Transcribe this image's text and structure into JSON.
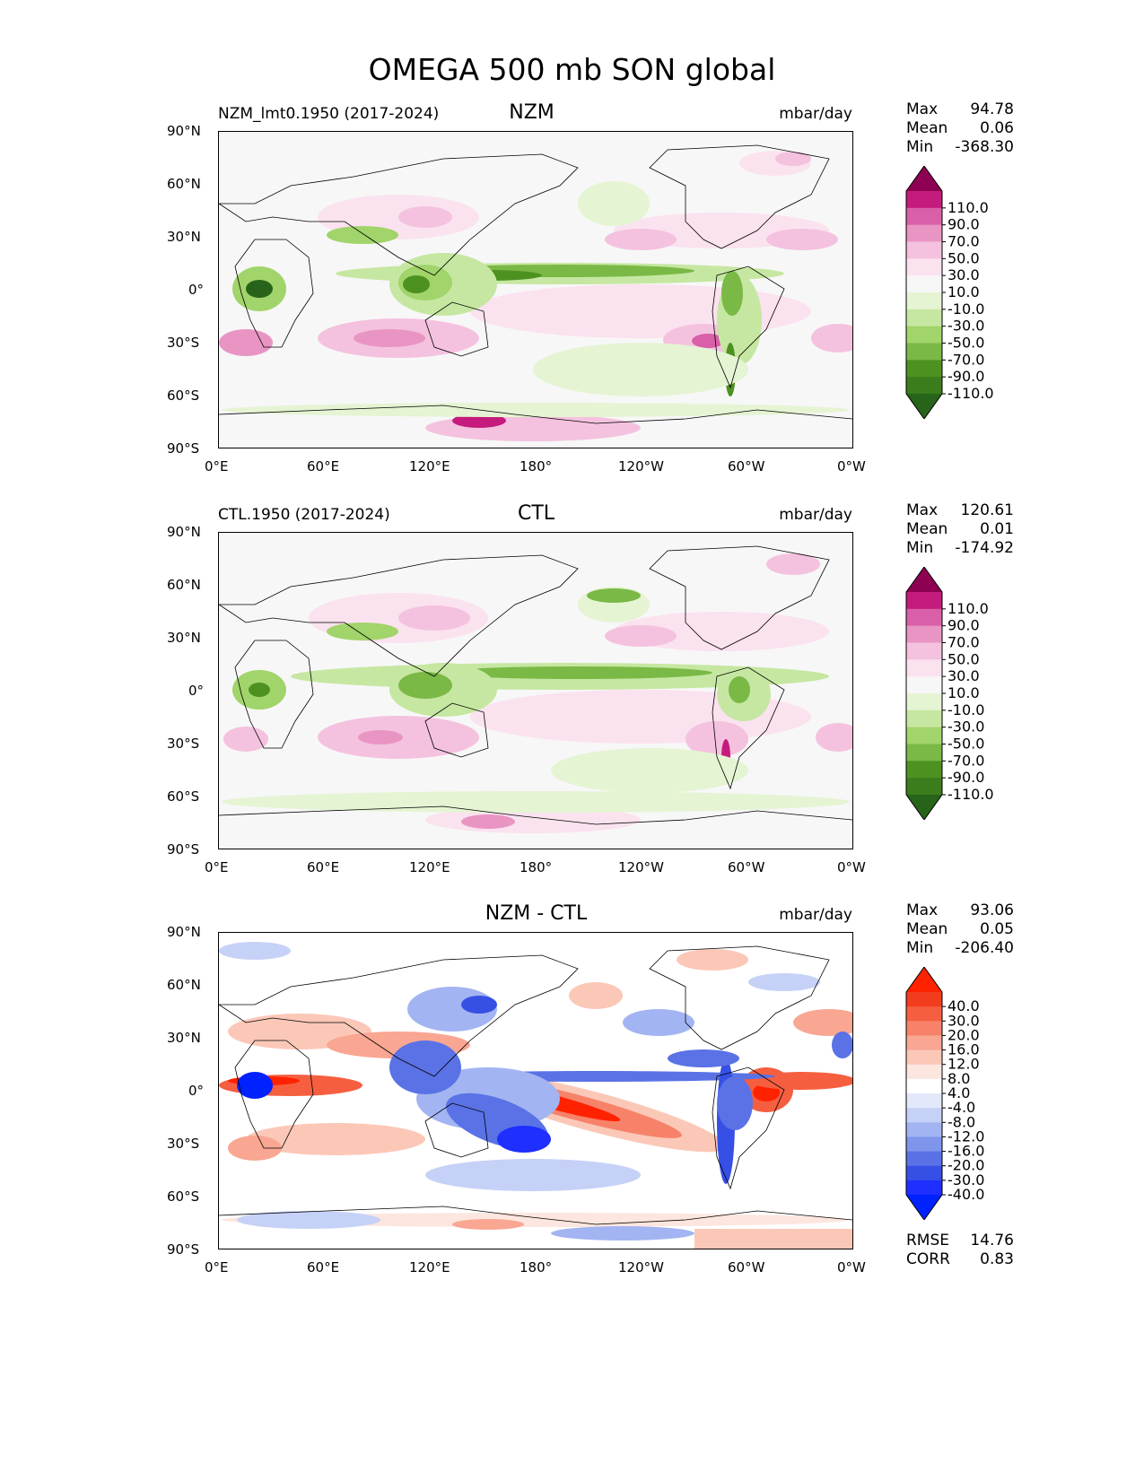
{
  "figure": {
    "title": "OMEGA 500 mb SON global"
  },
  "axes": {
    "lat_ticks": [
      "90°N",
      "60°N",
      "30°N",
      "0°",
      "30°S",
      "60°S",
      "90°S"
    ],
    "lon_ticks": [
      "0°E",
      "60°E",
      "120°E",
      "180°",
      "120°W",
      "60°W",
      "0°W"
    ]
  },
  "panels": [
    {
      "id": "nzm",
      "left_title": "NZM_lmt0.1950 (2017-2024)",
      "center_title": "NZM",
      "units": "mbar/day",
      "stats": {
        "max_label": "Max",
        "max": "94.78",
        "mean_label": "Mean",
        "mean": "0.06",
        "min_label": "Min",
        "min": "-368.30"
      },
      "colorbar": {
        "labels": [
          "110.0",
          "90.0",
          "70.0",
          "50.0",
          "30.0",
          "10.0",
          "-10.0",
          "-30.0",
          "-50.0",
          "-70.0",
          "-90.0",
          "-110.0"
        ],
        "colors": [
          "#8e0152",
          "#c51b7d",
          "#d95fa8",
          "#e995c4",
          "#f4c2de",
          "#fbe2ef",
          "#f7f7f7",
          "#e5f4d3",
          "#c6e7a1",
          "#a1d46a",
          "#7ab946",
          "#4d9221",
          "#3b7d1c",
          "#276419"
        ]
      }
    },
    {
      "id": "ctl",
      "left_title": "CTL.1950 (2017-2024)",
      "center_title": "CTL",
      "units": "mbar/day",
      "stats": {
        "max_label": "Max",
        "max": "120.61",
        "mean_label": "Mean",
        "mean": "0.01",
        "min_label": "Min",
        "min": "-174.92"
      },
      "colorbar": {
        "labels": [
          "110.0",
          "90.0",
          "70.0",
          "50.0",
          "30.0",
          "10.0",
          "-10.0",
          "-30.0",
          "-50.0",
          "-70.0",
          "-90.0",
          "-110.0"
        ],
        "colors": [
          "#8e0152",
          "#c51b7d",
          "#d95fa8",
          "#e995c4",
          "#f4c2de",
          "#fbe2ef",
          "#f7f7f7",
          "#e5f4d3",
          "#c6e7a1",
          "#a1d46a",
          "#7ab946",
          "#4d9221",
          "#3b7d1c",
          "#276419"
        ]
      }
    },
    {
      "id": "diff",
      "left_title": "",
      "center_title": "NZM - CTL",
      "units": "mbar/day",
      "stats": {
        "max_label": "Max",
        "max": "93.06",
        "mean_label": "Mean",
        "mean": "0.05",
        "min_label": "Min",
        "min": "-206.40"
      },
      "colorbar": {
        "labels": [
          "40.0",
          "30.0",
          "20.0",
          "16.0",
          "12.0",
          "8.0",
          "4.0",
          "-4.0",
          "-8.0",
          "-12.0",
          "-16.0",
          "-20.0",
          "-30.0",
          "-40.0"
        ],
        "colors": [
          "#ff2200",
          "#f23c1e",
          "#f55f40",
          "#f7826a",
          "#f9a692",
          "#fbc8b8",
          "#fde6df",
          "#ffffff",
          "#e3e8fb",
          "#c6d1f7",
          "#a3b4f2",
          "#7f95ec",
          "#5a72e6",
          "#3650e6",
          "#1e2fff",
          "#0022ff"
        ]
      },
      "footer": {
        "rmse_label": "RMSE",
        "rmse": "14.76",
        "corr_label": "CORR",
        "corr": "0.83"
      }
    }
  ]
}
